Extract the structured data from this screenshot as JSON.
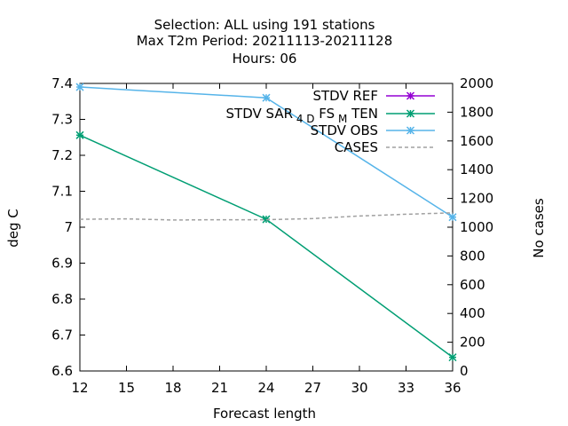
{
  "chart_data": {
    "type": "line",
    "title_lines": [
      "Selection: ALL using   191 stations",
      "Max T2m   Period: 20211113-20211128",
      "Hours:  06"
    ],
    "xlabel": "Forecast length",
    "ylabel": "deg C",
    "y2label": "No cases",
    "xlim": [
      12,
      36
    ],
    "ylim": [
      6.6,
      7.4
    ],
    "y2lim": [
      0,
      2000
    ],
    "xticks": [
      12,
      15,
      18,
      21,
      24,
      27,
      30,
      33,
      36
    ],
    "yticks": [
      6.6,
      6.7,
      6.8,
      6.9,
      7,
      7.1,
      7.2,
      7.3,
      7.4
    ],
    "yticklabels": [
      "6.6",
      "6.7",
      "6.8",
      "6.9",
      "7",
      "7.1",
      "7.2",
      "7.3",
      "7.4"
    ],
    "y2ticks": [
      0,
      200,
      400,
      600,
      800,
      1000,
      1200,
      1400,
      1600,
      1800,
      2000
    ],
    "grid": false,
    "legend_position": "top-right",
    "series": [
      {
        "name": "STDV REF",
        "axis": "y",
        "color": "#9400d3",
        "marker": "star",
        "x": [],
        "values": []
      },
      {
        "name": "STDV SAR_4D_FS_M_TEN",
        "label_parts": [
          "STDV SAR",
          "4 D",
          "FS",
          "M",
          "TEN"
        ],
        "axis": "y",
        "color": "#009e73",
        "marker": "star",
        "x": [
          12,
          24,
          36
        ],
        "values": [
          7.256,
          7.022,
          6.638
        ]
      },
      {
        "name": "STDV OBS",
        "axis": "y",
        "color": "#56b4e9",
        "marker": "star",
        "x": [
          12,
          24,
          36
        ],
        "values": [
          7.39,
          7.36,
          7.028
        ]
      },
      {
        "name": "CASES",
        "axis": "y2",
        "color": "#a0a0a0",
        "marker": "none",
        "dashed": true,
        "x": [
          12,
          15,
          18,
          21,
          24,
          27,
          30,
          33,
          36
        ],
        "values": [
          1055,
          1058,
          1050,
          1052,
          1052,
          1060,
          1078,
          1090,
          1100
        ]
      }
    ]
  }
}
